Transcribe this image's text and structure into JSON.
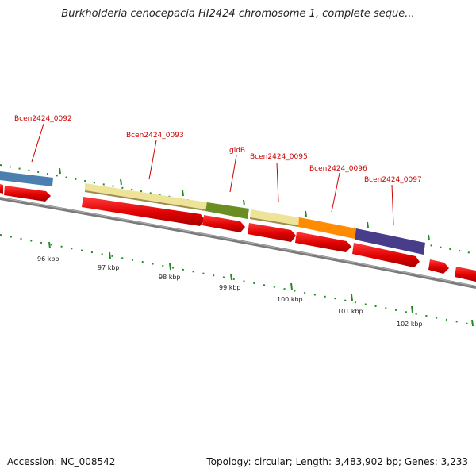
{
  "title": "Burkholderia cenocepacia HI2424 chromosome 1, complete seque...",
  "footer": {
    "accession": "Accession: NC_008542",
    "summary": "Topology: circular; Length: 3,483,902 bp; Genes: 3,233"
  },
  "colors": {
    "backbone": "#808080",
    "cds": "#ee0000",
    "tick": "#228b22",
    "label": "#cc0000"
  },
  "genes": [
    {
      "label": "Bcen2424_0092",
      "color": "#4a7fb0"
    },
    {
      "label": "Bcen2424_0093",
      "color": "#efe39a"
    },
    {
      "label": "gidB",
      "color": "#6b8e23"
    },
    {
      "label": "Bcen2424_0095",
      "color": "#efe39a"
    },
    {
      "label": "Bcen2424_0096",
      "color": "#ff8c00"
    },
    {
      "label": "Bcen2424_0097",
      "color": "#483d8b"
    }
  ],
  "scale_labels": [
    "96 kbp",
    "97 kbp",
    "98 kbp",
    "99 kbp",
    "100 kbp",
    "101 kbp",
    "102 kbp"
  ]
}
